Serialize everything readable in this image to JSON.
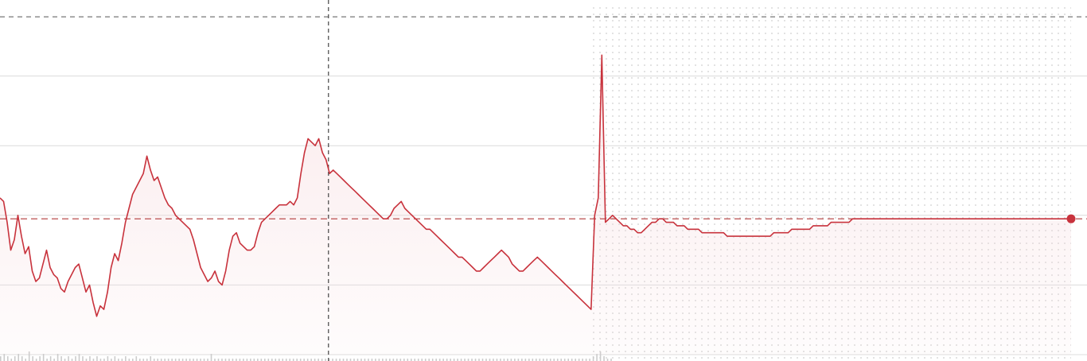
{
  "chart_data": {
    "type": "line",
    "title": "",
    "xlabel": "",
    "ylabel": "",
    "line_color": "#c8323c",
    "fill_color": "#f6d9dc",
    "extended_hours_shading": true,
    "x_range": [
      0,
      300
    ],
    "y_range": [
      0,
      100
    ],
    "reference_value": 39,
    "top_reference_value": 97,
    "session_marker_x": 92,
    "after_hours_start_x": 166,
    "series": [
      {
        "values": [
          45,
          44,
          38,
          30,
          33,
          40,
          34,
          29,
          31,
          24,
          21,
          22,
          26,
          30,
          25,
          23,
          22,
          19,
          18,
          21,
          23,
          25,
          26,
          22,
          18,
          20,
          15,
          11,
          14,
          13,
          18,
          25,
          29,
          27,
          32,
          38,
          42,
          46,
          48,
          50,
          52,
          57,
          53,
          50,
          51,
          48,
          45,
          43,
          42,
          40,
          39,
          38,
          37,
          36,
          33,
          29,
          25,
          23,
          21,
          22,
          24,
          21,
          20,
          24,
          30,
          34,
          35,
          32,
          31,
          30,
          30,
          31,
          35,
          38,
          39,
          40,
          41,
          42,
          43,
          43,
          43,
          44,
          43,
          45,
          52,
          58,
          62,
          61,
          60,
          62,
          58,
          56,
          52,
          53,
          52,
          51,
          50,
          49,
          48,
          47,
          46,
          45,
          44,
          43,
          42,
          41,
          40,
          39,
          39,
          40,
          42,
          43,
          44,
          42,
          41,
          40,
          39,
          38,
          37,
          36,
          36,
          35,
          34,
          33,
          32,
          31,
          30,
          29,
          28,
          28,
          27,
          26,
          25,
          24,
          24,
          25,
          26,
          27,
          28,
          29,
          30,
          29,
          28,
          26,
          25,
          24,
          24,
          25,
          26,
          27,
          28,
          27,
          26,
          25,
          24,
          23,
          22,
          21,
          20,
          19,
          18,
          17,
          16,
          15,
          14,
          13,
          40,
          45,
          86,
          38,
          39,
          40,
          39,
          38,
          37,
          37,
          36,
          36,
          35,
          35,
          36,
          37,
          38,
          38,
          39,
          39,
          38,
          38,
          38,
          37,
          37,
          37,
          36,
          36,
          36,
          36,
          35,
          35,
          35,
          35,
          35,
          35,
          35,
          34,
          34,
          34,
          34,
          34,
          34,
          34,
          34,
          34,
          34,
          34,
          34,
          34,
          35,
          35,
          35,
          35,
          35,
          36,
          36,
          36,
          36,
          36,
          36,
          37,
          37,
          37,
          37,
          37,
          38,
          38,
          38,
          38,
          38,
          38,
          39,
          39,
          39,
          39,
          39,
          39,
          39,
          39,
          39,
          39,
          39,
          39,
          39,
          39,
          39,
          39,
          39,
          39,
          39,
          39,
          39,
          39,
          39,
          39,
          39,
          39,
          39,
          39,
          39,
          39,
          39,
          39,
          39,
          39,
          39,
          39,
          39,
          39,
          39,
          39,
          39,
          39,
          39,
          39,
          39,
          39,
          39,
          39,
          39,
          39,
          39,
          39,
          39,
          39,
          39,
          39,
          39,
          39,
          39,
          39,
          39,
          39
        ]
      }
    ],
    "volume": [
      2,
      3,
      2,
      1,
      2,
      3,
      2,
      1,
      4,
      2,
      1,
      2,
      3,
      1,
      2,
      1,
      3,
      2,
      1,
      2,
      1,
      2,
      3,
      2,
      1,
      2,
      1,
      2,
      1,
      1,
      2,
      1,
      2,
      1,
      1,
      2,
      1,
      1,
      2,
      1,
      1,
      1,
      2,
      1,
      1,
      1,
      1,
      1,
      1,
      1,
      1,
      1,
      1,
      1,
      1,
      1,
      1,
      1,
      1,
      3,
      1,
      1,
      1,
      1,
      1,
      1,
      1,
      1,
      1,
      1,
      1,
      1,
      1,
      1,
      1,
      1,
      1,
      1,
      1,
      1,
      1,
      1,
      1,
      1,
      1,
      1,
      1,
      1,
      1,
      1,
      1,
      1,
      1,
      1,
      1,
      1,
      1,
      1,
      1,
      1,
      1,
      1,
      1,
      1,
      1,
      1,
      1,
      1,
      1,
      1,
      1,
      1,
      1,
      1,
      1,
      1,
      1,
      1,
      1,
      1,
      1,
      1,
      1,
      1,
      1,
      1,
      1,
      1,
      1,
      1,
      1,
      1,
      1,
      1,
      1,
      1,
      1,
      1,
      1,
      1,
      1,
      1,
      1,
      1,
      1,
      1,
      1,
      1,
      1,
      1,
      1,
      1,
      1,
      1,
      1,
      1,
      1,
      1,
      1,
      1,
      1,
      1,
      1,
      1,
      1,
      1,
      2,
      3,
      4,
      2,
      1,
      1
    ]
  }
}
